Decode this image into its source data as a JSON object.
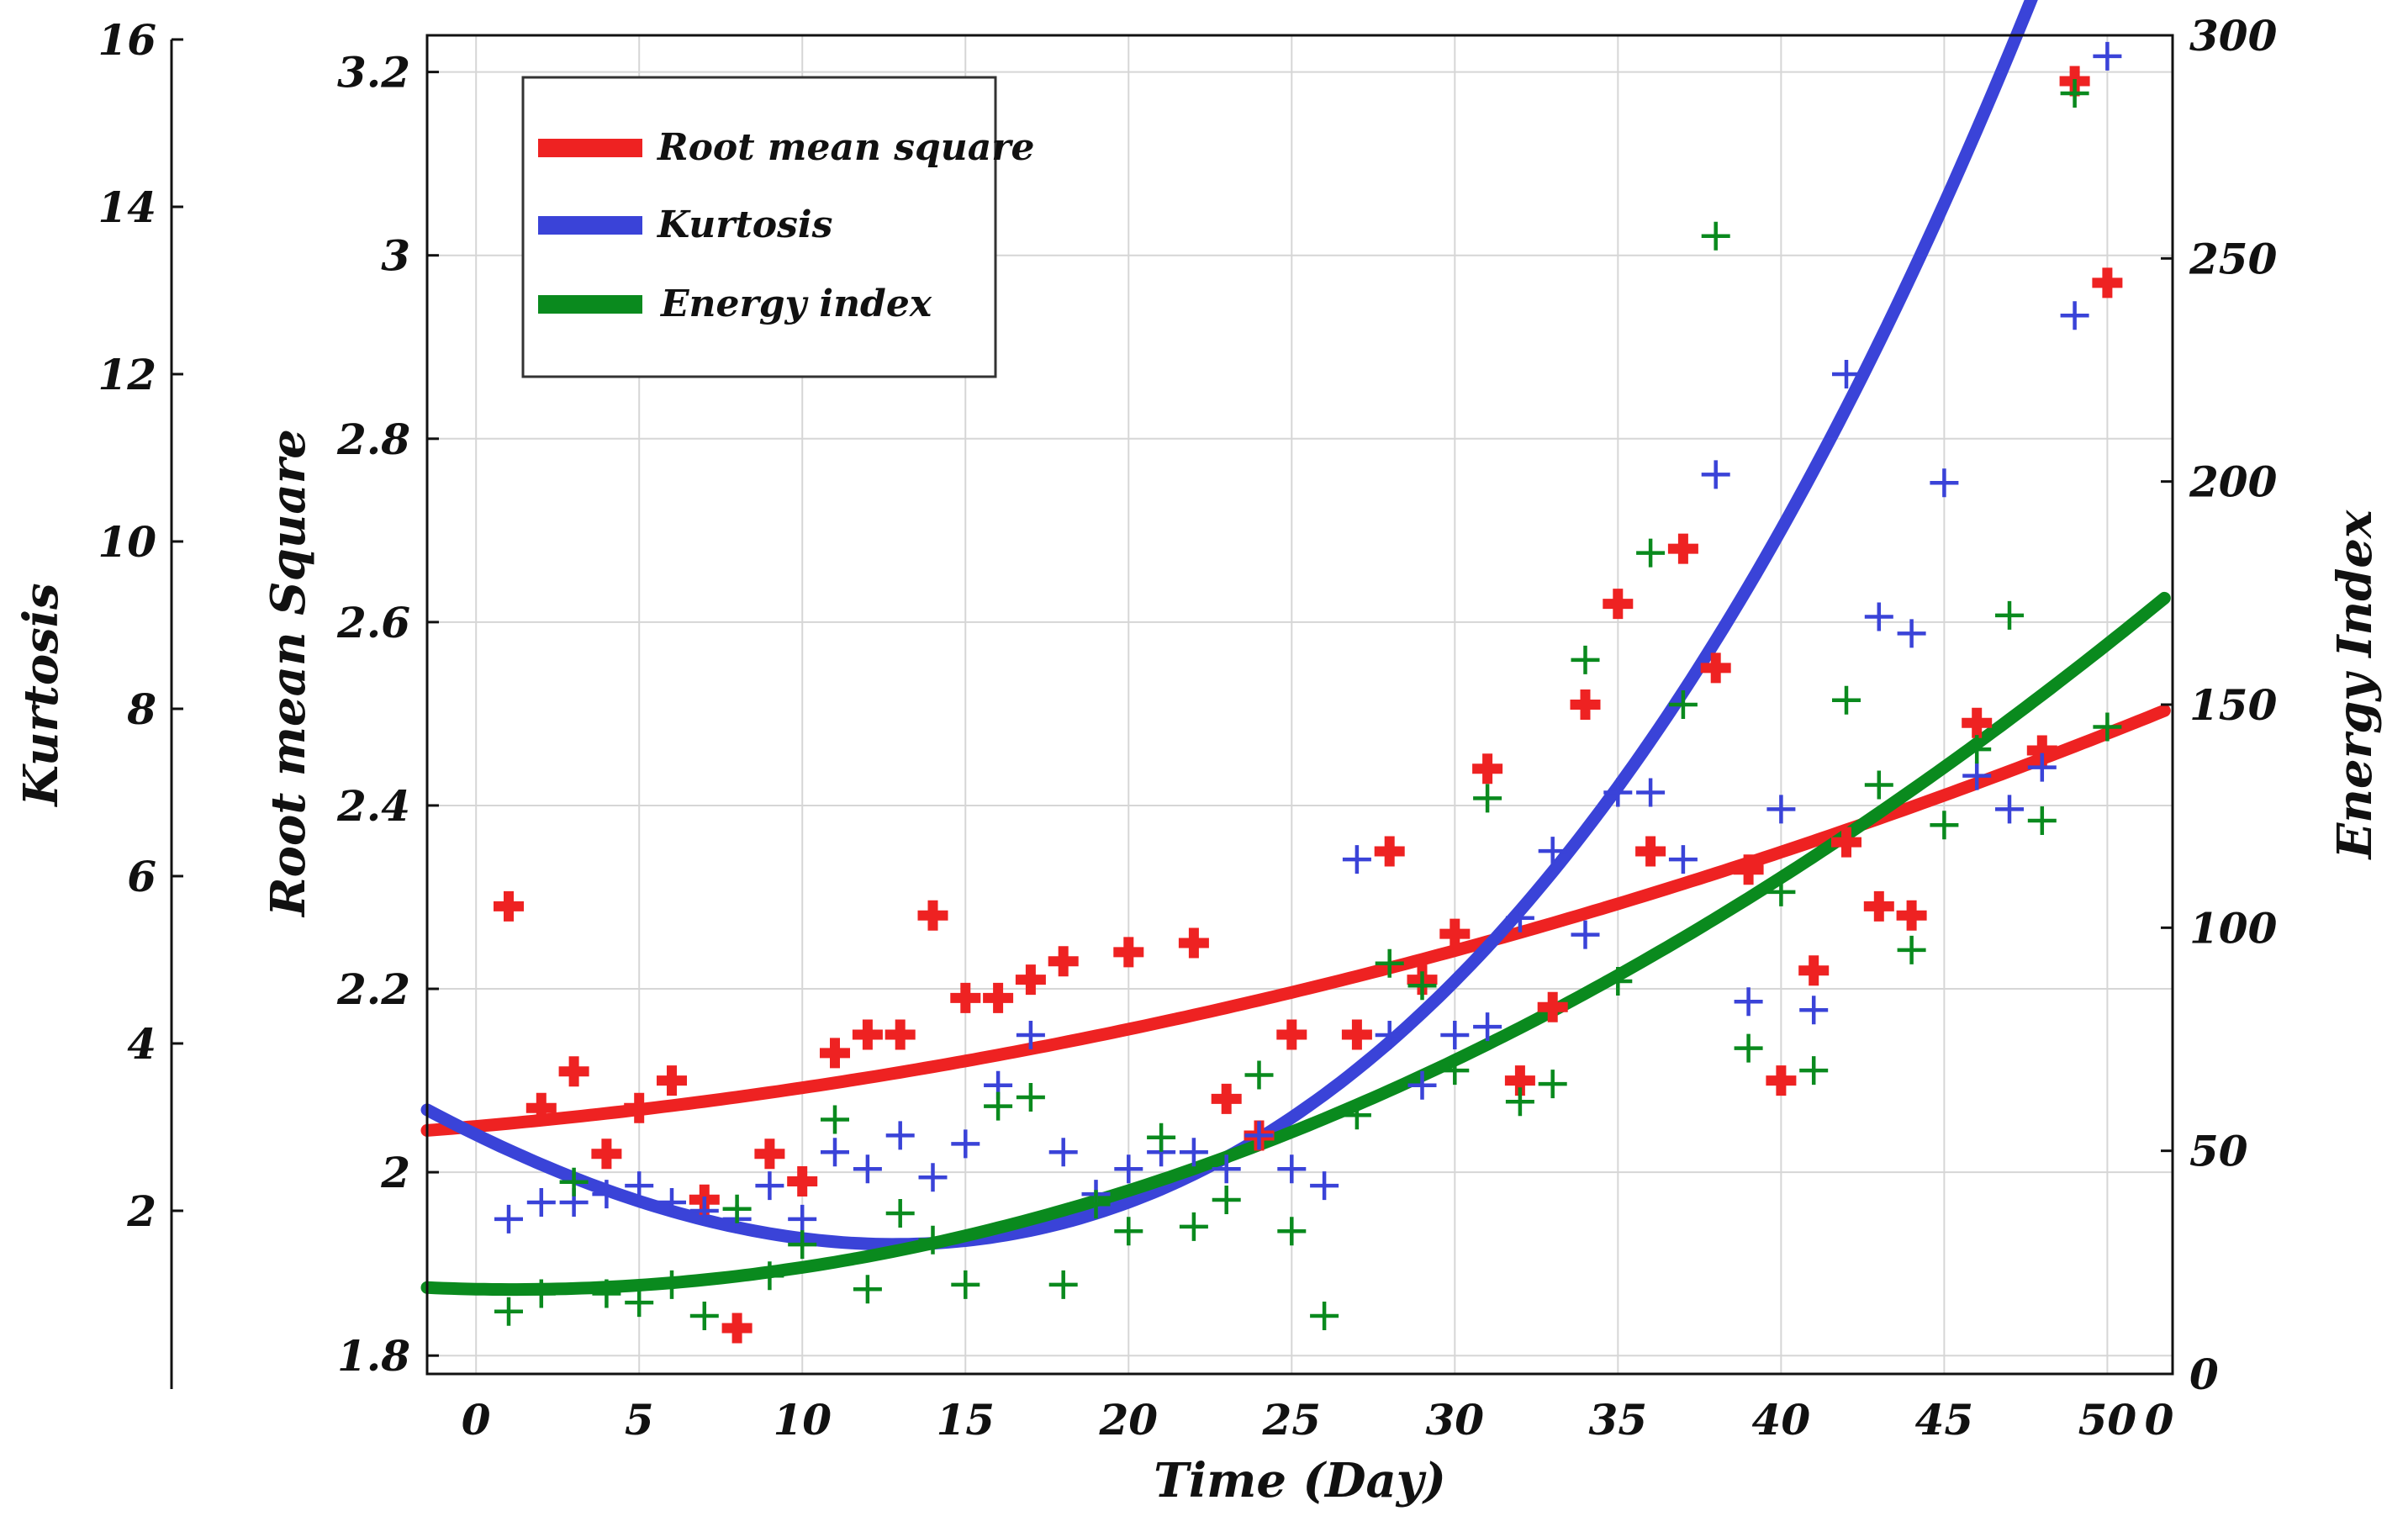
{
  "chart_data": {
    "type": "scatter",
    "title": "",
    "xlabel": "Time (Day)",
    "xlim": [
      -1.5,
      52
    ],
    "xticks": [
      0,
      5,
      10,
      15,
      20,
      25,
      30,
      35,
      40,
      45,
      50
    ],
    "x_extra_tick_label": "0",
    "grid": true,
    "legend_position": "top-left",
    "legend": [
      "Root mean square",
      "Kurtosis",
      "Energy index"
    ],
    "axes": {
      "rms": {
        "label": "Root mean Square",
        "ylim": [
          1.78,
          3.24
        ],
        "ticks": [
          1.8,
          2,
          2.2,
          2.4,
          2.6,
          2.8,
          3,
          3.2
        ],
        "tick_labels": [
          "1.8",
          "2",
          "2.2",
          "2.4",
          "2.6",
          "2.8",
          "3",
          "3.2"
        ]
      },
      "kurtosis": {
        "label": "Kurtosis",
        "ylim": [
          0.05,
          16.05
        ],
        "ticks": [
          2,
          4,
          6,
          8,
          10,
          12,
          14,
          16
        ],
        "tick_labels": [
          "2",
          "4",
          "6",
          "8",
          "10",
          "12",
          "14",
          "16"
        ]
      },
      "energy": {
        "label": "Energy Index",
        "ylim": [
          0,
          300
        ],
        "ticks": [
          0,
          50,
          100,
          150,
          200,
          250,
          300
        ],
        "tick_labels": [
          "0",
          "50",
          "100",
          "150",
          "200",
          "250",
          "300"
        ]
      }
    },
    "series": [
      {
        "name": "Root mean square",
        "color": "#ee2222",
        "axis": "rms",
        "fit": {
          "type": "quadratic",
          "coefficients": [
            2.05,
            0.00312,
            0.000109
          ]
        },
        "x": [
          1,
          2,
          3,
          4,
          5,
          6,
          7,
          8,
          9,
          10,
          11,
          12,
          13,
          14,
          15,
          16,
          17,
          18,
          20,
          22,
          23,
          24,
          25,
          27,
          28,
          29,
          30,
          31,
          32,
          33,
          34,
          35,
          36,
          37,
          38,
          39,
          40,
          41,
          42,
          43,
          44,
          46,
          48,
          49,
          50
        ],
        "values": [
          2.29,
          2.07,
          2.11,
          2.02,
          2.07,
          2.1,
          1.97,
          1.83,
          2.02,
          1.99,
          2.13,
          2.15,
          2.15,
          2.28,
          2.19,
          2.19,
          2.21,
          2.23,
          2.24,
          2.25,
          2.08,
          2.04,
          2.15,
          2.15,
          2.35,
          2.21,
          2.26,
          2.44,
          2.1,
          2.18,
          2.51,
          2.62,
          2.35,
          2.68,
          2.55,
          2.33,
          2.1,
          2.22,
          2.36,
          2.29,
          2.28,
          2.49,
          2.46,
          3.19,
          2.97
        ]
      },
      {
        "name": "Kurtosis",
        "color": "#3a43d8",
        "axis": "kurtosis",
        "fit": {
          "type": "cubic",
          "coefficients": [
            2.91,
            -0.1897,
            0.00567,
            8.98e-05
          ]
        },
        "x": [
          1,
          2,
          3,
          4,
          5,
          6,
          7,
          8,
          9,
          10,
          11,
          12,
          13,
          14,
          15,
          16,
          17,
          18,
          19,
          20,
          21,
          22,
          23,
          24,
          25,
          26,
          27,
          28,
          29,
          30,
          31,
          32,
          33,
          34,
          35,
          36,
          37,
          38,
          39,
          40,
          41,
          42,
          43,
          44,
          45,
          46,
          47,
          48,
          49,
          50
        ],
        "values": [
          1.9,
          2.1,
          2.1,
          2.2,
          2.3,
          2.1,
          2.0,
          1.9,
          2.3,
          1.9,
          2.7,
          2.5,
          2.9,
          2.4,
          2.8,
          3.5,
          4.1,
          2.7,
          2.2,
          2.5,
          2.7,
          2.7,
          2.5,
          2.9,
          2.5,
          2.3,
          6.2,
          4.1,
          3.5,
          4.1,
          4.2,
          5.5,
          6.3,
          5.3,
          7.0,
          7.0,
          6.2,
          10.8,
          4.5,
          6.8,
          4.4,
          12.0,
          9.1,
          8.9,
          10.7,
          7.2,
          6.8,
          7.3,
          12.7,
          15.8
        ]
      },
      {
        "name": "Energy index",
        "color": "#0a8a1e",
        "axis": "energy",
        "fit": {
          "type": "cubic",
          "coefficients": [
            19.0,
            -0.139,
            0.0632,
            -5.2e-05
          ]
        },
        "x": [
          1,
          2,
          3,
          4,
          5,
          6,
          7,
          8,
          9,
          10,
          11,
          12,
          13,
          14,
          15,
          16,
          17,
          18,
          19,
          20,
          21,
          22,
          23,
          24,
          25,
          26,
          27,
          28,
          29,
          30,
          31,
          32,
          33,
          34,
          35,
          36,
          37,
          38,
          39,
          40,
          41,
          42,
          43,
          44,
          45,
          46,
          47,
          48,
          49,
          50
        ],
        "values": [
          14,
          18,
          43,
          18,
          16,
          20,
          13,
          37,
          22,
          29,
          57,
          19,
          36,
          30,
          20,
          60,
          62,
          20,
          38,
          32,
          53,
          33,
          39,
          67,
          32,
          13,
          58,
          92,
          87,
          68,
          129,
          61,
          65,
          160,
          88,
          184,
          150,
          255,
          73,
          108,
          68,
          151,
          132,
          95,
          123,
          140,
          170,
          124,
          287,
          145
        ]
      }
    ]
  }
}
